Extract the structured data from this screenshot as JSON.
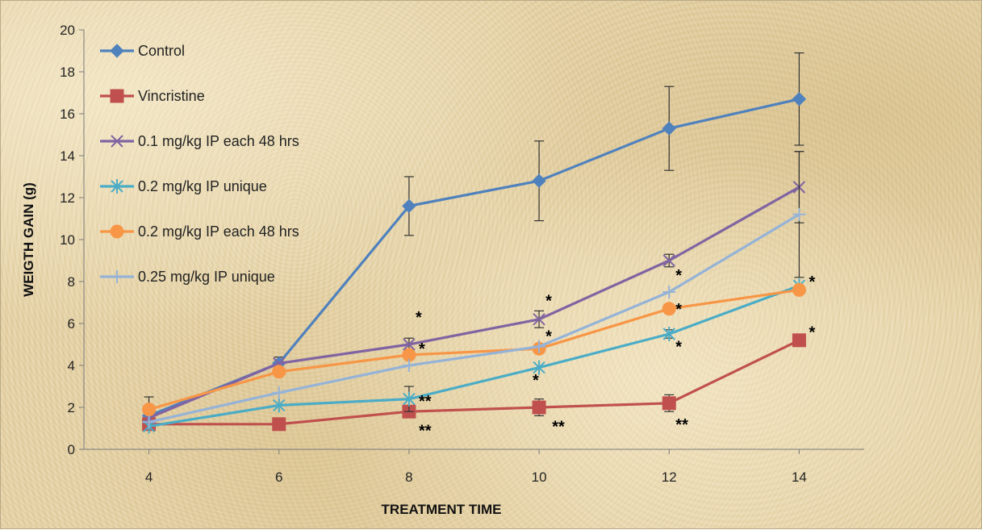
{
  "chart_data": {
    "type": "line",
    "xlabel": "TREATMENT TIME",
    "ylabel": "WEIGTH GAIN (g)",
    "x": [
      4,
      6,
      8,
      10,
      12,
      14
    ],
    "x_ticks": [
      "4",
      "6",
      "8",
      "10",
      "12",
      "14"
    ],
    "y_ticks": [
      "0",
      "2",
      "4",
      "6",
      "8",
      "10",
      "12",
      "14",
      "16",
      "18",
      "20"
    ],
    "xlim": [
      3,
      15
    ],
    "ylim": [
      0,
      20
    ],
    "grid": false,
    "legend_position": "top-left",
    "series": [
      {
        "name": "Control",
        "color": "#4f81bd",
        "marker": "diamond",
        "values": [
          1.6,
          4.1,
          11.6,
          12.8,
          15.3,
          16.7
        ],
        "errors": [
          null,
          0.3,
          1.4,
          1.9,
          2.0,
          2.2
        ]
      },
      {
        "name": "Vincristine",
        "color": "#c0504d",
        "marker": "square",
        "values": [
          1.2,
          1.2,
          1.8,
          2.0,
          2.2,
          5.2
        ],
        "errors": [
          null,
          null,
          null,
          0.4,
          0.4,
          null
        ]
      },
      {
        "name": "0.1 mg/kg IP each 48 hrs",
        "color": "#8064a2",
        "marker": "x",
        "values": [
          1.5,
          4.1,
          5.0,
          6.2,
          9.0,
          12.5
        ],
        "errors": [
          null,
          null,
          0.3,
          0.4,
          0.3,
          1.7
        ]
      },
      {
        "name": "0.2 mg/kg IP unique",
        "color": "#4bacc6",
        "marker": "star",
        "values": [
          1.1,
          2.1,
          2.4,
          3.9,
          5.5,
          7.8
        ],
        "errors": [
          null,
          null,
          0.6,
          null,
          0.2,
          null
        ]
      },
      {
        "name": "0.2 mg/kg IP each 48 hrs",
        "color": "#f79646",
        "marker": "circle",
        "values": [
          1.9,
          3.7,
          4.5,
          4.8,
          6.7,
          7.6
        ],
        "errors": [
          0.6,
          null,
          null,
          null,
          null,
          null
        ]
      },
      {
        "name": "0.25 mg/kg IP unique",
        "color": "#95b3d7",
        "marker": "plus",
        "values": [
          1.3,
          2.7,
          4.0,
          4.9,
          7.5,
          11.2
        ],
        "errors": [
          null,
          null,
          null,
          null,
          null,
          3.0
        ]
      }
    ],
    "annotations": [
      {
        "text": "*",
        "x": 8.1,
        "y": 6.3
      },
      {
        "text": "*",
        "x": 8.15,
        "y": 4.8
      },
      {
        "text": "**",
        "x": 8.15,
        "y": 2.3
      },
      {
        "text": "**",
        "x": 8.15,
        "y": 0.9
      },
      {
        "text": "*",
        "x": 10.1,
        "y": 7.1
      },
      {
        "text": "*",
        "x": 10.1,
        "y": 5.4
      },
      {
        "text": "*",
        "x": 9.9,
        "y": 3.3
      },
      {
        "text": "**",
        "x": 10.2,
        "y": 1.1
      },
      {
        "text": "*",
        "x": 12.1,
        "y": 8.3
      },
      {
        "text": "*",
        "x": 12.1,
        "y": 6.7
      },
      {
        "text": "*",
        "x": 12.1,
        "y": 4.9
      },
      {
        "text": "**",
        "x": 12.1,
        "y": 1.2
      },
      {
        "text": "*",
        "x": 14.15,
        "y": 8.0
      },
      {
        "text": "*",
        "x": 14.15,
        "y": 5.6
      }
    ]
  }
}
